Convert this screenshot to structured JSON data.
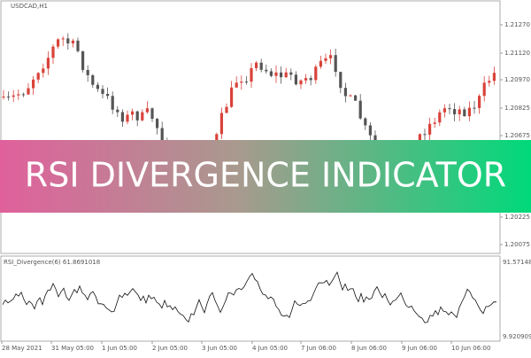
{
  "symbol": "USDCAD,H1",
  "price_axis": [
    "1.21270",
    "1.21120",
    "1.20970",
    "1.20825",
    "1.20675",
    "1.20225",
    "1.20075"
  ],
  "indicator": {
    "label": "RSI_Divergence(6) 61.8691018",
    "axis": [
      "91.571480",
      "9.920909"
    ]
  },
  "time_axis": [
    "28 May 2021",
    "31 May 05:00",
    "1 Jun 05:00",
    "2 Jun 05:00",
    "3 Jun 05:00",
    "4 Jun 05:00",
    "7 Jun 06:00",
    "8 Jun 06:00",
    "9 Jun 06:00",
    "10 Jun 06:00"
  ],
  "banner": "RSI DIVERGENCE INDICATOR"
}
